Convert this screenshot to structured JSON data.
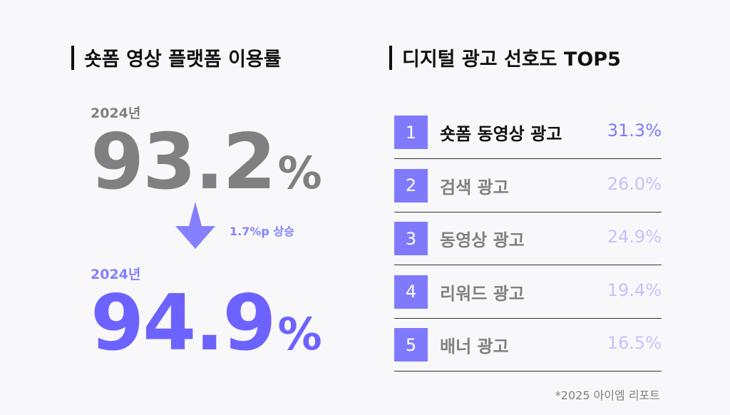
{
  "colors": {
    "accent": "#6c63ff",
    "box": "#7f7afc",
    "arrow": "#8580ff",
    "muted_pct": "#c5c2fb",
    "gray": "#808080"
  },
  "left": {
    "title": "숏폼 영상 플랫폼 이용률",
    "before": {
      "year": "2024년",
      "value": "93.2",
      "unit": "%"
    },
    "change": {
      "icon": "arrow-down-icon",
      "label": "1.7%p 상승"
    },
    "after": {
      "year": "2024년",
      "value": "94.9",
      "unit": "%"
    }
  },
  "right": {
    "title": "디지털 광고 선호도 TOP5",
    "items": [
      {
        "rank": "1",
        "label": "숏폼 동영상 광고",
        "value": "31.3%"
      },
      {
        "rank": "2",
        "label": "검색 광고",
        "value": "26.0%"
      },
      {
        "rank": "3",
        "label": "동영상 광고",
        "value": "24.9%"
      },
      {
        "rank": "4",
        "label": "리워드 광고",
        "value": "19.4%"
      },
      {
        "rank": "5",
        "label": "배너 광고",
        "value": "16.5%"
      }
    ],
    "footnote": "*2025 아이엠 리포트"
  }
}
